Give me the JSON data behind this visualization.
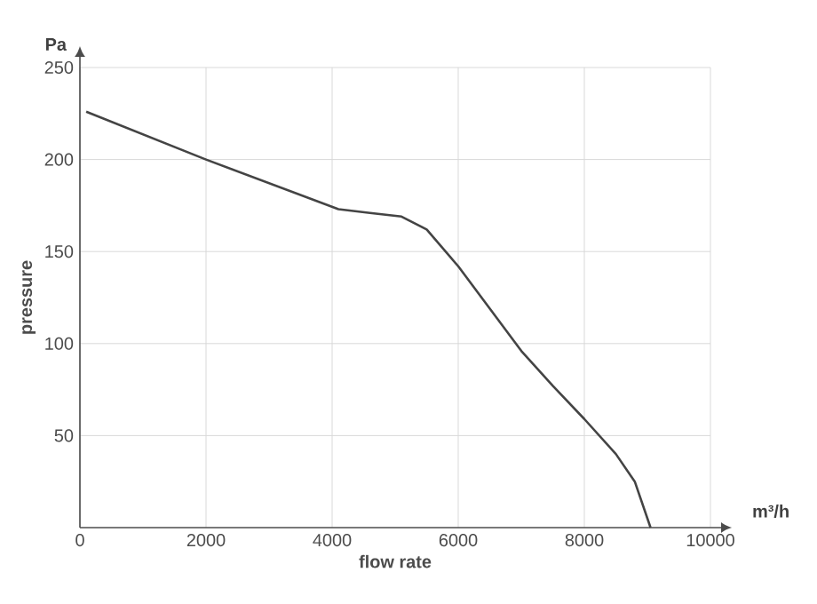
{
  "chart_data": {
    "type": "line",
    "xlabel": "flow rate",
    "ylabel": "pressure",
    "annotations": [
      "Pa",
      "m³/h"
    ],
    "x": [
      100,
      2000,
      4100,
      4600,
      5100,
      5500,
      6000,
      6500,
      7000,
      7500,
      8000,
      8500,
      8800,
      9050
    ],
    "series": [
      {
        "color": "#444444",
        "values": [
          226,
          200,
          173,
          171,
          169,
          162,
          142,
          119,
          96,
          77,
          59,
          40,
          25,
          0
        ]
      }
    ],
    "xlim": [
      0,
      10000
    ],
    "ylim": [
      0,
      250
    ],
    "xticks": [
      0,
      2000,
      4000,
      6000,
      8000,
      10000
    ],
    "yticks": [
      50,
      100,
      150,
      200,
      250
    ],
    "grid": true,
    "marker": "none",
    "line_style": "solid"
  }
}
